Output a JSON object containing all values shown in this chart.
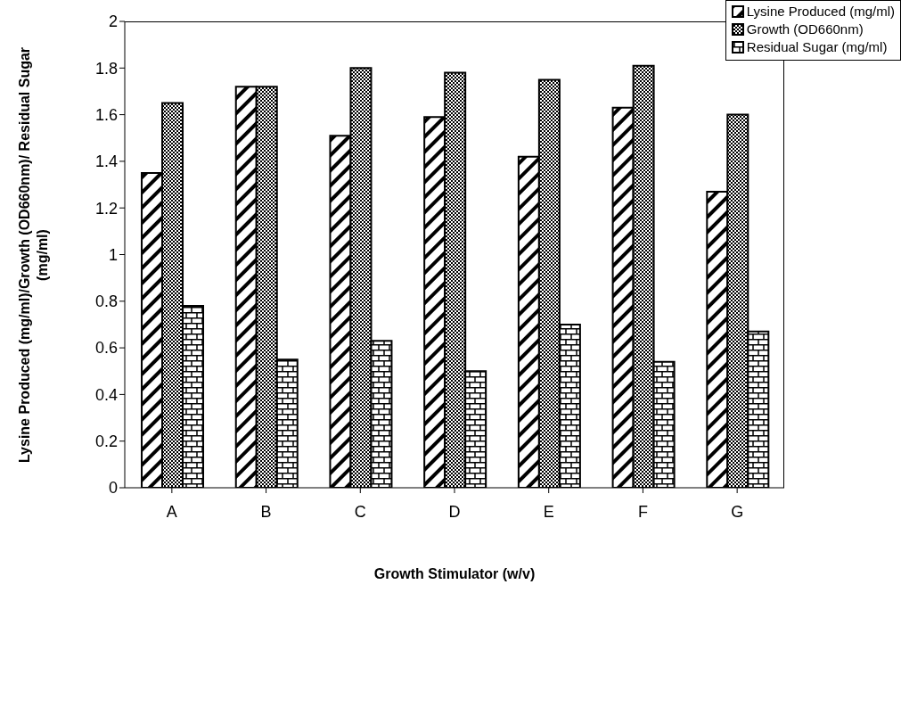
{
  "chart_data": {
    "type": "bar",
    "xlabel": "Growth Stimulator (w/v)",
    "ylabel": "Lysine Produced (mg/ml)/Growth (OD660nm)/ Residual Sugar (mg/ml)",
    "categories": [
      "A",
      "B",
      "C",
      "D",
      "E",
      "F",
      "G"
    ],
    "series": [
      {
        "name": "Lysine Produced (mg/ml)",
        "color": "#000000",
        "values": [
          1.35,
          1.72,
          1.51,
          1.59,
          1.42,
          1.63,
          1.27
        ]
      },
      {
        "name": "Growth (OD660nm)",
        "color": "#000000",
        "values": [
          1.65,
          1.72,
          1.8,
          1.78,
          1.75,
          1.81,
          1.6
        ]
      },
      {
        "name": "Residual Sugar (mg/ml)",
        "color": "#000000",
        "values": [
          0.78,
          0.55,
          0.63,
          0.5,
          0.7,
          0.54,
          0.67
        ]
      }
    ],
    "ylim": [
      0,
      2
    ],
    "yticks": [
      0,
      0.2,
      0.4,
      0.6,
      0.8,
      1,
      1.2,
      1.4,
      1.6,
      1.8,
      2
    ],
    "grid": false,
    "legend": "top right"
  }
}
